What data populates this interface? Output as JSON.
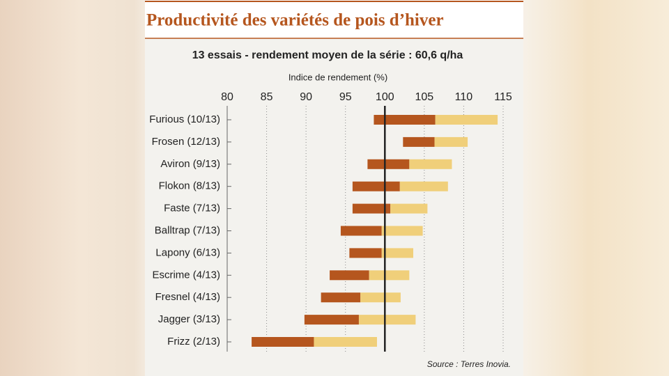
{
  "chart_data": {
    "type": "range",
    "title": "Productivité des variétés de pois d’hiver",
    "subtitle": "13 essais - rendement moyen de la série : 60,6 q/ha",
    "x_label": "Indice de rendement (%)",
    "source": "Source : Terres Inovia.",
    "categories": [
      "Furious (10/13)",
      "Frosen (12/13)",
      "Aviron (9/13)",
      "Flokon (8/13)",
      "Faste (7/13)",
      "Balltrap (7/13)",
      "Lapony (6/13)",
      "Escrime (4/13)",
      "Fresnel (4/13)",
      "Jagger (3/13)",
      "Frizz (2/13)"
    ],
    "min": [
      98.6,
      102.3,
      97.8,
      95.9,
      95.9,
      94.4,
      95.5,
      93.0,
      91.9,
      89.8,
      83.1
    ],
    "mean": [
      106.4,
      106.3,
      103.1,
      101.9,
      100.7,
      99.6,
      99.6,
      98.0,
      96.9,
      96.7,
      91.0
    ],
    "max": [
      114.3,
      110.5,
      108.5,
      108.0,
      105.4,
      104.8,
      103.6,
      103.1,
      102.0,
      103.9,
      99.0
    ],
    "low_color": "#b5561e",
    "high_color": "#f0cf7a",
    "reference": 100,
    "xlim": [
      80,
      115
    ],
    "xticks": [
      80,
      85,
      90,
      95,
      100,
      105,
      110,
      115
    ],
    "grid": true
  }
}
